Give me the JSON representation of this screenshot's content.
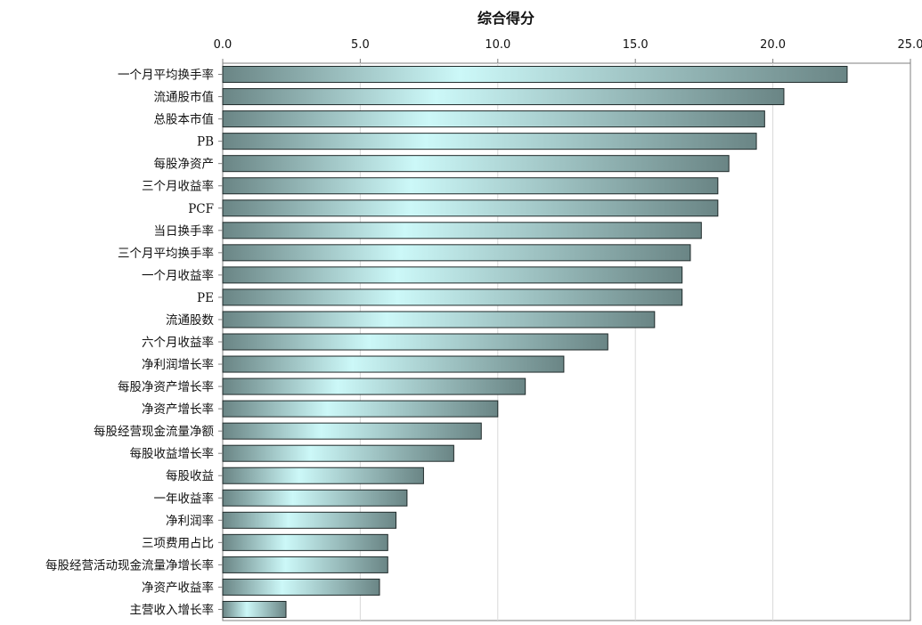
{
  "chart_data": {
    "type": "bar",
    "orientation": "horizontal",
    "title": "综合得分",
    "xlabel": "",
    "ylabel": "",
    "xlim": [
      0,
      25
    ],
    "x_ticks": [
      "0.0",
      "5.0",
      "10.0",
      "15.0",
      "20.0",
      "25.0"
    ],
    "x_axis_position": "top",
    "grid": true,
    "legend": "none",
    "categories": [
      "一个月平均换手率",
      "流通股市值",
      "总股本市值",
      "PB",
      "每股净资产",
      "三个月收益率",
      "PCF",
      "当日换手率",
      "三个月平均换手率",
      "一个月收益率",
      "PE",
      "流通股数",
      "六个月收益率",
      "净利润增长率",
      "每股净资产增长率",
      "净资产增长率",
      "每股经营现金流量净额",
      "每股收益增长率",
      "每股收益",
      "一年收益率",
      "净利润率",
      "三项费用占比",
      "每股经营活动现金流量净增长率",
      "净资产收益率",
      "主营收入增长率"
    ],
    "values": [
      22.7,
      20.4,
      19.7,
      19.4,
      18.4,
      18.0,
      18.0,
      17.4,
      17.0,
      16.7,
      16.7,
      15.7,
      14.0,
      12.4,
      11.0,
      10.0,
      9.4,
      8.4,
      7.3,
      6.7,
      6.3,
      6.0,
      6.0,
      5.7,
      2.3
    ],
    "colors": {
      "bar_edge": "#1f2a2a",
      "bar_dark": "#6a8585",
      "bar_light": "#ccf8f8",
      "grid": "#d9d9d9",
      "axis": "#7f7f7f"
    }
  }
}
